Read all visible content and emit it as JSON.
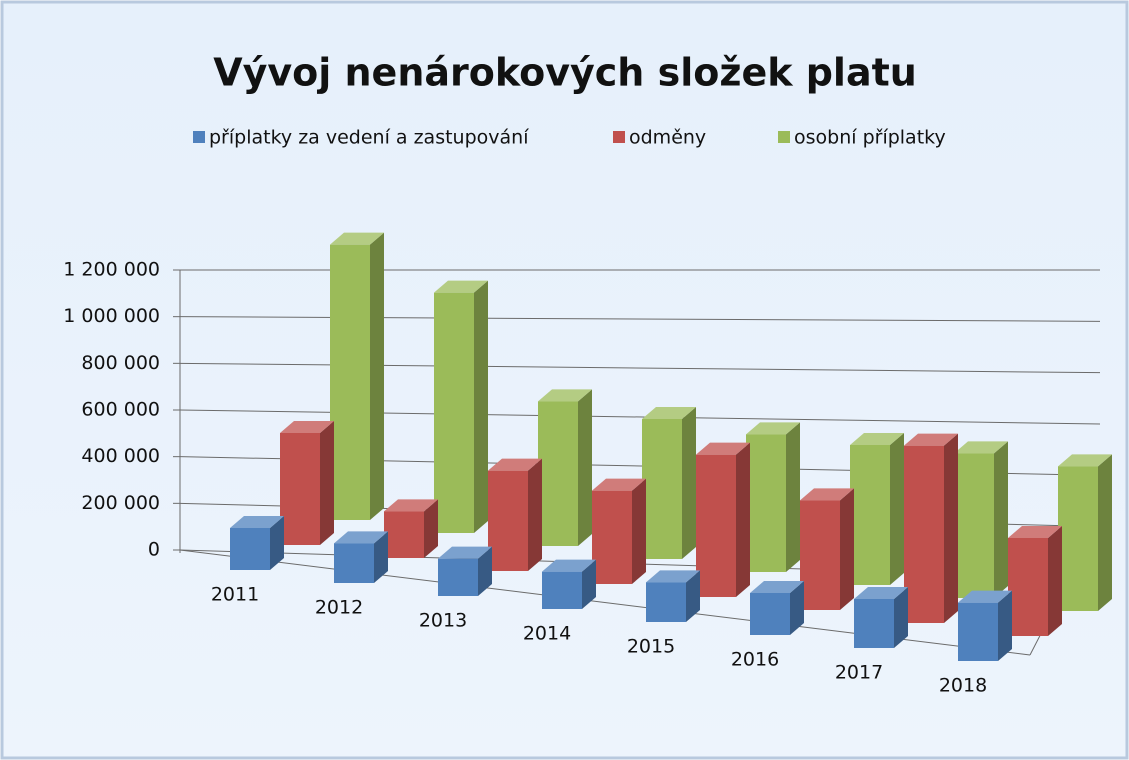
{
  "chart_data": {
    "type": "bar3d",
    "title": "Vývoj nenárokových složek platu",
    "categories": [
      "2011",
      "2012",
      "2013",
      "2014",
      "2015",
      "2016",
      "2017",
      "2018"
    ],
    "series": [
      {
        "name": "příplatky za vedení a zastupování",
        "color": "#4f81bd",
        "values": [
          180000,
          170000,
          160000,
          160000,
          170000,
          180000,
          210000,
          250000
        ]
      },
      {
        "name": "odměny",
        "color": "#c0504d",
        "values": [
          480000,
          200000,
          430000,
          400000,
          610000,
          470000,
          760000,
          420000
        ]
      },
      {
        "name": "osobní příplatky",
        "color": "#9bbb59",
        "values": [
          1180000,
          1030000,
          620000,
          600000,
          590000,
          600000,
          620000,
          620000
        ]
      }
    ],
    "ylim": [
      0,
      1200000
    ],
    "yticks": [
      0,
      {
        "value": 200000,
        "label": "200 000"
      },
      {
        "value": 400000,
        "label": "400 000"
      },
      {
        "value": 600000,
        "label": "600 000"
      },
      {
        "value": 800000,
        "label": "800 000"
      },
      {
        "value": 1000000,
        "label": "1 000 000"
      },
      {
        "value": 1200000,
        "label": "1 200 000"
      }
    ],
    "grid": true,
    "legend": "top"
  }
}
